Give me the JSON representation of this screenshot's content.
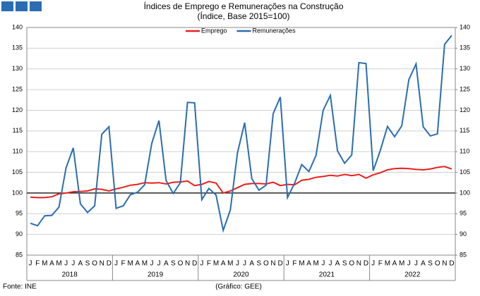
{
  "chart_data": {
    "type": "line",
    "title": "Índices de Emprego e Remunerações na Construção",
    "subtitle": "(Índice, Base 2015=100)",
    "source": "Fonte: INE",
    "credit": "(Gráfico: GEE)",
    "categories": [
      "J",
      "F",
      "M",
      "A",
      "M",
      "J",
      "J",
      "A",
      "S",
      "O",
      "N",
      "D",
      "J",
      "F",
      "M",
      "A",
      "M",
      "J",
      "J",
      "A",
      "S",
      "O",
      "N",
      "D",
      "J",
      "F",
      "M",
      "A",
      "M",
      "J",
      "J",
      "A",
      "S",
      "O",
      "N",
      "D",
      "J",
      "F",
      "M",
      "A",
      "M",
      "J",
      "J",
      "A",
      "S",
      "O",
      "N",
      "D",
      "J",
      "F",
      "M",
      "A",
      "M",
      "J",
      "J",
      "A",
      "S",
      "O",
      "N",
      "D"
    ],
    "year_labels": [
      "2018",
      "2019",
      "2020",
      "2021",
      "2022"
    ],
    "series": [
      {
        "name": "Emprego",
        "color": "#e8201c",
        "values": [
          99.0,
          98.9,
          98.9,
          99.1,
          99.8,
          100.0,
          100.3,
          100.4,
          100.5,
          101.0,
          100.9,
          100.5,
          101.0,
          101.4,
          101.9,
          102.1,
          102.5,
          102.4,
          102.5,
          102.2,
          102.6,
          102.7,
          102.9,
          101.8,
          102.1,
          102.8,
          102.4,
          100.0,
          100.5,
          101.3,
          102.1,
          102.3,
          102.3,
          102.2,
          102.6,
          101.8,
          102.1,
          102.0,
          103.1,
          103.3,
          103.8,
          104.0,
          104.3,
          104.1,
          104.5,
          104.2,
          104.5,
          103.6,
          104.4,
          104.9,
          105.6,
          105.9,
          106.0,
          105.9,
          105.7,
          105.6,
          105.8,
          106.2,
          106.4,
          105.8
        ]
      },
      {
        "name": "Remunerações",
        "color": "#2a6db3",
        "values": [
          92.7,
          92.1,
          94.5,
          94.6,
          96.6,
          106.1,
          110.9,
          97.4,
          95.3,
          96.9,
          114.2,
          116.0,
          96.3,
          96.9,
          99.6,
          100.2,
          102.0,
          112.0,
          117.5,
          103.0,
          99.9,
          102.5,
          121.9,
          121.8,
          98.4,
          101.1,
          99.5,
          91.0,
          95.9,
          109.7,
          117.0,
          103.5,
          100.7,
          101.9,
          119.2,
          123.2,
          98.9,
          102.4,
          106.9,
          105.2,
          109.1,
          120.0,
          123.6,
          110.2,
          107.2,
          109.2,
          131.5,
          131.3,
          105.4,
          110.3,
          116.1,
          113.6,
          116.2,
          127.4,
          131.2,
          116.0,
          113.8,
          114.3,
          135.9,
          138.1
        ]
      }
    ],
    "ylim": [
      85,
      140
    ],
    "yticks": [
      85,
      90,
      95,
      100,
      105,
      110,
      115,
      120,
      125,
      130,
      135,
      140
    ],
    "y2lim": [
      85,
      140
    ],
    "y2ticks": [
      85,
      90,
      95,
      100,
      105,
      110,
      115,
      120,
      125,
      130,
      135,
      140
    ],
    "reference_line": 100,
    "grid": true,
    "legend": "top"
  }
}
